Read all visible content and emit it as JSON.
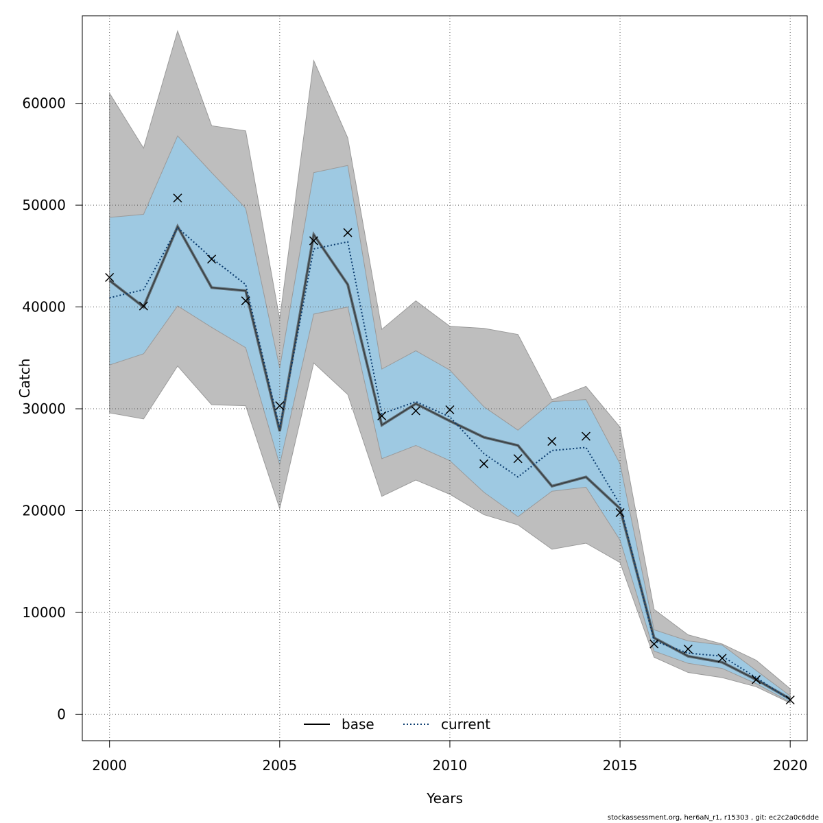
{
  "chart_data": {
    "type": "line",
    "title": "",
    "xlabel": "Years",
    "ylabel": "Catch",
    "xlim": [
      1999.2,
      2020.5
    ],
    "ylim": [
      -2600,
      68600
    ],
    "x_ticks": [
      2000,
      2005,
      2010,
      2015,
      2020
    ],
    "y_ticks": [
      0,
      10000,
      20000,
      30000,
      40000,
      50000,
      60000
    ],
    "x_tick_labels": [
      "2000",
      "2005",
      "2010",
      "2015",
      "2020"
    ],
    "y_tick_labels": [
      "0",
      "10000",
      "20000",
      "30000",
      "40000",
      "50000",
      "60000"
    ],
    "grid": true,
    "legend_position": "bottom",
    "x": [
      2000,
      2001,
      2002,
      2003,
      2004,
      2005,
      2006,
      2007,
      2008,
      2009,
      2010,
      2011,
      2012,
      2013,
      2014,
      2015,
      2016,
      2017,
      2018,
      2019,
      2020
    ],
    "series": [
      {
        "name": "base",
        "style": "solid",
        "color": "#000000",
        "values": [
          42600,
          40000,
          47900,
          41900,
          41600,
          27800,
          47100,
          42200,
          28400,
          30500,
          28800,
          27200,
          26400,
          22400,
          23300,
          20200,
          7500,
          5700,
          5100,
          3400,
          1500
        ],
        "lower": [
          29600,
          29000,
          34200,
          30400,
          30300,
          20200,
          34500,
          31400,
          21400,
          23000,
          21600,
          19600,
          18600,
          16200,
          16800,
          14900,
          5600,
          4100,
          3600,
          2700,
          1100
        ],
        "upper": [
          61000,
          55600,
          67100,
          57800,
          57300,
          38800,
          64200,
          56600,
          37800,
          40600,
          38100,
          37900,
          37300,
          30900,
          32200,
          28200,
          10300,
          7800,
          6900,
          5300,
          2500
        ],
        "band_color": "#bebebe"
      },
      {
        "name": "current",
        "style": "dotted",
        "color": "#0b3c6f",
        "values": [
          40900,
          41700,
          47800,
          44800,
          42200,
          28100,
          45700,
          46400,
          29500,
          30700,
          29200,
          25600,
          23300,
          25900,
          26200,
          20600,
          7200,
          6000,
          5700,
          3600,
          1400
        ],
        "lower": [
          34300,
          35400,
          40100,
          38000,
          36000,
          24500,
          39300,
          40000,
          25100,
          26400,
          24900,
          21800,
          19400,
          21900,
          22300,
          17100,
          6200,
          5000,
          4500,
          3000,
          1200
        ],
        "upper": [
          48800,
          49100,
          56800,
          53200,
          49700,
          34000,
          53200,
          53900,
          33900,
          35700,
          33800,
          30200,
          27900,
          30700,
          30900,
          24600,
          8300,
          7200,
          6800,
          4300,
          1800
        ],
        "band_color": "#9ec9e2"
      }
    ],
    "observed": {
      "marker": "x",
      "values": [
        42900,
        40100,
        50700,
        44700,
        40600,
        30300,
        46500,
        47300,
        29300,
        29800,
        29900,
        24600,
        25100,
        26800,
        27300,
        19800,
        6900,
        6400,
        5500,
        3400,
        1400
      ]
    }
  },
  "footer": "stockassessment.org, her6aN_r1, r15303 , git: ec2c2a0c6dde"
}
